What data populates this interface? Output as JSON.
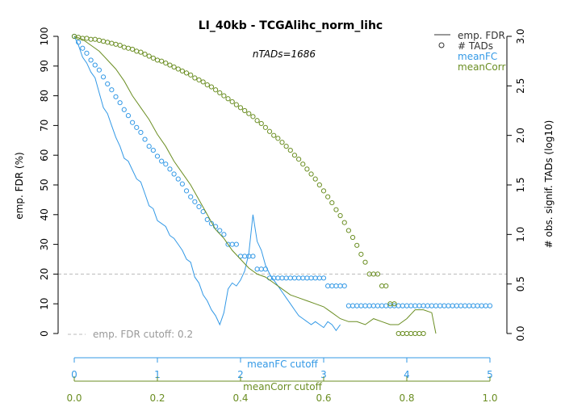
{
  "chart_data": {
    "type": "line",
    "title": "LI_40kb - TCGAlihc_norm_lihc",
    "subtitle": "nTADs=1686",
    "ylabel": "emp. FDR (%)",
    "y2label": "# obs. signif. TADs (log10)",
    "ylim": [
      0,
      100
    ],
    "y2lim": [
      0,
      3.0
    ],
    "yticks": [
      0,
      10,
      20,
      30,
      40,
      50,
      60,
      70,
      80,
      90,
      100
    ],
    "y2ticks": [
      0.0,
      0.5,
      1.0,
      1.5,
      2.0,
      2.5,
      3.0
    ],
    "axis_fc": {
      "label": "meanFC cutoff",
      "lim": [
        0,
        5
      ],
      "ticks": [
        0,
        1,
        2,
        3,
        4,
        5
      ],
      "color": "#3399e6"
    },
    "axis_corr": {
      "label": "meanCorr cutoff",
      "lim": [
        0,
        1.0
      ],
      "ticks": [
        0.0,
        0.2,
        0.4,
        0.6,
        0.8,
        1.0
      ],
      "color": "#6b8e23"
    },
    "cutoff": {
      "value": 20,
      "label": "emp. FDR cutoff: 0.2",
      "color": "#bbbbbb"
    },
    "legend": {
      "position": "top-right",
      "items": [
        {
          "label": "emp. FDR",
          "kind": "line",
          "color": "#333333"
        },
        {
          "label": "# TADs",
          "kind": "circle",
          "color": "#333333"
        },
        {
          "label": "meanFC",
          "kind": "text",
          "color": "#3399e6"
        },
        {
          "label": "meanCorr",
          "kind": "text",
          "color": "#6b8e23"
        }
      ]
    },
    "series": [
      {
        "name": "meanFC",
        "color": "#3399e6",
        "axis": "fc",
        "fdr": [
          [
            0,
            100
          ],
          [
            0.05,
            97
          ],
          [
            0.1,
            93
          ],
          [
            0.15,
            91
          ],
          [
            0.2,
            88
          ],
          [
            0.25,
            86
          ],
          [
            0.3,
            81
          ],
          [
            0.35,
            76
          ],
          [
            0.4,
            74
          ],
          [
            0.45,
            70
          ],
          [
            0.5,
            66
          ],
          [
            0.55,
            63
          ],
          [
            0.6,
            59
          ],
          [
            0.65,
            58
          ],
          [
            0.7,
            55
          ],
          [
            0.75,
            52
          ],
          [
            0.8,
            51
          ],
          [
            0.85,
            47
          ],
          [
            0.9,
            43
          ],
          [
            0.95,
            42
          ],
          [
            1.0,
            38
          ],
          [
            1.05,
            37
          ],
          [
            1.1,
            36
          ],
          [
            1.15,
            33
          ],
          [
            1.2,
            32
          ],
          [
            1.25,
            30
          ],
          [
            1.3,
            28
          ],
          [
            1.35,
            25
          ],
          [
            1.4,
            24
          ],
          [
            1.45,
            19
          ],
          [
            1.5,
            17
          ],
          [
            1.55,
            13
          ],
          [
            1.6,
            11
          ],
          [
            1.65,
            8
          ],
          [
            1.7,
            6
          ],
          [
            1.75,
            3
          ],
          [
            1.8,
            7
          ],
          [
            1.85,
            15
          ],
          [
            1.9,
            17
          ],
          [
            1.95,
            16
          ],
          [
            2.0,
            18
          ],
          [
            2.05,
            21
          ],
          [
            2.1,
            27
          ],
          [
            2.15,
            40
          ],
          [
            2.2,
            31
          ],
          [
            2.25,
            28
          ],
          [
            2.3,
            23
          ],
          [
            2.35,
            20
          ],
          [
            2.4,
            18
          ],
          [
            2.45,
            16
          ],
          [
            2.5,
            14
          ],
          [
            2.55,
            12
          ],
          [
            2.6,
            10
          ],
          [
            2.65,
            8
          ],
          [
            2.7,
            6
          ],
          [
            2.75,
            5
          ],
          [
            2.8,
            4
          ],
          [
            2.85,
            3
          ],
          [
            2.9,
            4
          ],
          [
            2.95,
            3
          ],
          [
            3.0,
            2
          ],
          [
            3.05,
            4
          ],
          [
            3.1,
            3
          ],
          [
            3.15,
            1
          ],
          [
            3.2,
            3
          ]
        ],
        "tads": [
          [
            0,
            3.0
          ],
          [
            0.05,
            2.94
          ],
          [
            0.1,
            2.88
          ],
          [
            0.15,
            2.83
          ],
          [
            0.2,
            2.76
          ],
          [
            0.25,
            2.71
          ],
          [
            0.3,
            2.66
          ],
          [
            0.35,
            2.59
          ],
          [
            0.4,
            2.52
          ],
          [
            0.45,
            2.46
          ],
          [
            0.5,
            2.39
          ],
          [
            0.55,
            2.33
          ],
          [
            0.6,
            2.26
          ],
          [
            0.65,
            2.2
          ],
          [
            0.7,
            2.13
          ],
          [
            0.75,
            2.08
          ],
          [
            0.8,
            2.03
          ],
          [
            0.85,
            1.96
          ],
          [
            0.9,
            1.89
          ],
          [
            0.95,
            1.85
          ],
          [
            1.0,
            1.79
          ],
          [
            1.05,
            1.74
          ],
          [
            1.1,
            1.71
          ],
          [
            1.15,
            1.66
          ],
          [
            1.2,
            1.61
          ],
          [
            1.25,
            1.56
          ],
          [
            1.3,
            1.51
          ],
          [
            1.35,
            1.44
          ],
          [
            1.4,
            1.38
          ],
          [
            1.45,
            1.33
          ],
          [
            1.5,
            1.28
          ],
          [
            1.55,
            1.23
          ],
          [
            1.6,
            1.15
          ],
          [
            1.65,
            1.11
          ],
          [
            1.7,
            1.08
          ],
          [
            1.75,
            1.04
          ],
          [
            1.8,
            1.0
          ],
          [
            1.85,
            0.9
          ],
          [
            1.9,
            0.9
          ],
          [
            1.95,
            0.9
          ],
          [
            2.0,
            0.78
          ],
          [
            2.05,
            0.78
          ],
          [
            2.1,
            0.78
          ],
          [
            2.15,
            0.78
          ],
          [
            2.2,
            0.65
          ],
          [
            2.25,
            0.65
          ],
          [
            2.3,
            0.65
          ],
          [
            2.35,
            0.56
          ],
          [
            2.4,
            0.56
          ],
          [
            2.45,
            0.56
          ],
          [
            2.5,
            0.56
          ],
          [
            2.55,
            0.56
          ],
          [
            2.6,
            0.56
          ],
          [
            2.65,
            0.56
          ],
          [
            2.7,
            0.56
          ],
          [
            2.75,
            0.56
          ],
          [
            2.8,
            0.56
          ],
          [
            2.85,
            0.56
          ],
          [
            2.9,
            0.56
          ],
          [
            2.95,
            0.56
          ],
          [
            3.0,
            0.56
          ],
          [
            3.05,
            0.48
          ],
          [
            3.1,
            0.48
          ],
          [
            3.15,
            0.48
          ],
          [
            3.2,
            0.48
          ],
          [
            3.25,
            0.48
          ],
          [
            3.3,
            0.28
          ],
          [
            3.35,
            0.28
          ],
          [
            3.4,
            0.28
          ],
          [
            3.45,
            0.28
          ],
          [
            3.5,
            0.28
          ],
          [
            3.55,
            0.28
          ],
          [
            3.6,
            0.28
          ],
          [
            3.65,
            0.28
          ],
          [
            3.7,
            0.28
          ],
          [
            3.75,
            0.28
          ],
          [
            3.8,
            0.28
          ],
          [
            3.85,
            0.28
          ],
          [
            3.9,
            0.28
          ],
          [
            3.95,
            0.28
          ],
          [
            4.0,
            0.28
          ],
          [
            4.05,
            0.28
          ],
          [
            4.1,
            0.28
          ],
          [
            4.15,
            0.28
          ],
          [
            4.2,
            0.28
          ],
          [
            4.25,
            0.28
          ],
          [
            4.3,
            0.28
          ],
          [
            4.35,
            0.28
          ],
          [
            4.4,
            0.28
          ],
          [
            4.45,
            0.28
          ],
          [
            4.5,
            0.28
          ],
          [
            4.55,
            0.28
          ],
          [
            4.6,
            0.28
          ],
          [
            4.65,
            0.28
          ],
          [
            4.7,
            0.28
          ],
          [
            4.75,
            0.28
          ],
          [
            4.8,
            0.28
          ],
          [
            4.85,
            0.28
          ],
          [
            4.9,
            0.28
          ],
          [
            4.95,
            0.28
          ],
          [
            5.0,
            0.28
          ]
        ]
      },
      {
        "name": "meanCorr",
        "color": "#6b8e23",
        "axis": "corr",
        "fdr": [
          [
            0,
            100
          ],
          [
            0.02,
            99
          ],
          [
            0.04,
            97
          ],
          [
            0.06,
            95
          ],
          [
            0.08,
            92
          ],
          [
            0.1,
            89
          ],
          [
            0.12,
            85
          ],
          [
            0.14,
            80
          ],
          [
            0.16,
            76
          ],
          [
            0.18,
            72
          ],
          [
            0.2,
            67
          ],
          [
            0.22,
            63
          ],
          [
            0.24,
            58
          ],
          [
            0.26,
            54
          ],
          [
            0.28,
            50
          ],
          [
            0.3,
            45
          ],
          [
            0.32,
            40
          ],
          [
            0.34,
            35
          ],
          [
            0.36,
            32
          ],
          [
            0.38,
            28
          ],
          [
            0.4,
            25
          ],
          [
            0.42,
            22
          ],
          [
            0.44,
            20
          ],
          [
            0.46,
            19
          ],
          [
            0.48,
            17
          ],
          [
            0.5,
            15
          ],
          [
            0.52,
            13
          ],
          [
            0.54,
            12
          ],
          [
            0.56,
            11
          ],
          [
            0.58,
            10
          ],
          [
            0.6,
            9
          ],
          [
            0.62,
            7
          ],
          [
            0.64,
            5
          ],
          [
            0.66,
            4
          ],
          [
            0.68,
            4
          ],
          [
            0.7,
            3
          ],
          [
            0.72,
            5
          ],
          [
            0.74,
            4
          ],
          [
            0.76,
            3
          ],
          [
            0.78,
            3
          ],
          [
            0.8,
            5
          ],
          [
            0.82,
            8
          ],
          [
            0.84,
            8
          ],
          [
            0.86,
            7
          ],
          [
            0.87,
            0
          ]
        ],
        "tads": [
          [
            0,
            3.0
          ],
          [
            0.01,
            2.99
          ],
          [
            0.02,
            2.98
          ],
          [
            0.03,
            2.98
          ],
          [
            0.04,
            2.97
          ],
          [
            0.05,
            2.97
          ],
          [
            0.06,
            2.96
          ],
          [
            0.07,
            2.95
          ],
          [
            0.08,
            2.94
          ],
          [
            0.09,
            2.93
          ],
          [
            0.1,
            2.92
          ],
          [
            0.11,
            2.91
          ],
          [
            0.12,
            2.89
          ],
          [
            0.13,
            2.88
          ],
          [
            0.14,
            2.87
          ],
          [
            0.15,
            2.85
          ],
          [
            0.16,
            2.84
          ],
          [
            0.17,
            2.82
          ],
          [
            0.18,
            2.8
          ],
          [
            0.19,
            2.78
          ],
          [
            0.2,
            2.76
          ],
          [
            0.21,
            2.75
          ],
          [
            0.22,
            2.73
          ],
          [
            0.23,
            2.71
          ],
          [
            0.24,
            2.69
          ],
          [
            0.25,
            2.67
          ],
          [
            0.26,
            2.65
          ],
          [
            0.27,
            2.63
          ],
          [
            0.28,
            2.61
          ],
          [
            0.29,
            2.58
          ],
          [
            0.3,
            2.56
          ],
          [
            0.31,
            2.54
          ],
          [
            0.32,
            2.51
          ],
          [
            0.33,
            2.49
          ],
          [
            0.34,
            2.46
          ],
          [
            0.35,
            2.43
          ],
          [
            0.36,
            2.4
          ],
          [
            0.37,
            2.37
          ],
          [
            0.38,
            2.34
          ],
          [
            0.39,
            2.31
          ],
          [
            0.4,
            2.28
          ],
          [
            0.41,
            2.25
          ],
          [
            0.42,
            2.22
          ],
          [
            0.43,
            2.19
          ],
          [
            0.44,
            2.15
          ],
          [
            0.45,
            2.12
          ],
          [
            0.46,
            2.08
          ],
          [
            0.47,
            2.04
          ],
          [
            0.48,
            2.0
          ],
          [
            0.49,
            1.97
          ],
          [
            0.5,
            1.93
          ],
          [
            0.51,
            1.89
          ],
          [
            0.52,
            1.85
          ],
          [
            0.53,
            1.8
          ],
          [
            0.54,
            1.76
          ],
          [
            0.55,
            1.71
          ],
          [
            0.56,
            1.66
          ],
          [
            0.57,
            1.61
          ],
          [
            0.58,
            1.56
          ],
          [
            0.59,
            1.5
          ],
          [
            0.6,
            1.44
          ],
          [
            0.61,
            1.38
          ],
          [
            0.62,
            1.32
          ],
          [
            0.63,
            1.25
          ],
          [
            0.64,
            1.19
          ],
          [
            0.65,
            1.12
          ],
          [
            0.66,
            1.04
          ],
          [
            0.67,
            0.97
          ],
          [
            0.68,
            0.89
          ],
          [
            0.69,
            0.8
          ],
          [
            0.7,
            0.72
          ],
          [
            0.71,
            0.6
          ],
          [
            0.72,
            0.6
          ],
          [
            0.73,
            0.6
          ],
          [
            0.74,
            0.48
          ],
          [
            0.75,
            0.48
          ],
          [
            0.76,
            0.3
          ],
          [
            0.77,
            0.3
          ],
          [
            0.78,
            0.0
          ],
          [
            0.79,
            0.0
          ],
          [
            0.8,
            0.0
          ],
          [
            0.81,
            0.0
          ],
          [
            0.82,
            0.0
          ],
          [
            0.83,
            0.0
          ],
          [
            0.84,
            0.0
          ]
        ]
      }
    ]
  }
}
